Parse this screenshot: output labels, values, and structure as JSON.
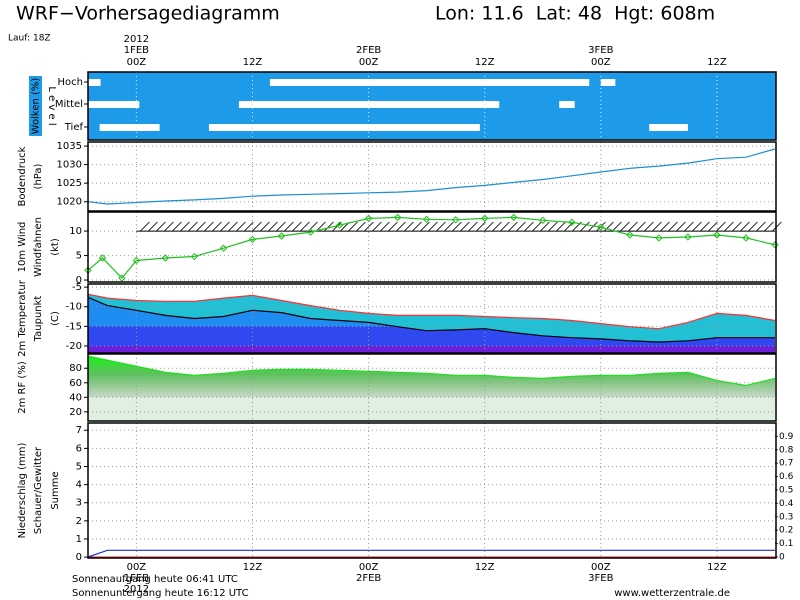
{
  "header": {
    "title": "WRF−Vorhersagediagramm",
    "location": "Lon: 11.6  Lat: 48  Hgt: 608m",
    "run": "Lauf: 18Z"
  },
  "time_axis": {
    "xlim": [
      -5,
      66
    ],
    "xticks": [
      {
        "value": 0,
        "label": "00Z"
      },
      {
        "value": 12,
        "label": "12Z"
      },
      {
        "value": 24,
        "label": "00Z"
      },
      {
        "value": 36,
        "label": "12Z"
      },
      {
        "value": 48,
        "label": "00Z"
      },
      {
        "value": 60,
        "label": "12Z"
      }
    ],
    "dates": [
      {
        "value": 0,
        "label": "1FEB"
      },
      {
        "value": 24,
        "label": "2FEB"
      },
      {
        "value": 48,
        "label": "3FEB"
      }
    ],
    "year": {
      "value": 0,
      "label": "2012"
    }
  },
  "chart_data": [
    {
      "type": "cloud_bands",
      "y_label": "Wolken (%)",
      "level_label": "L e v e l",
      "levels": [
        "Hoch",
        "Mittel",
        "Tief"
      ],
      "bands": [
        {
          "level": 0,
          "start": -5,
          "end": -3.7
        },
        {
          "level": 0,
          "start": 13.8,
          "end": 46.8
        },
        {
          "level": 0,
          "start": 48,
          "end": 49.5
        },
        {
          "level": 1,
          "start": -5,
          "end": 0.3
        },
        {
          "level": 1,
          "start": 10.6,
          "end": 37.5
        },
        {
          "level": 1,
          "start": 43.7,
          "end": 45.3
        },
        {
          "level": 2,
          "start": -3.8,
          "end": 2.4
        },
        {
          "level": 2,
          "start": 7.5,
          "end": 35.5
        },
        {
          "level": 2,
          "start": 53,
          "end": 57
        }
      ]
    },
    {
      "type": "line",
      "unit_label": "(hPa)",
      "ylim": [
        1017.5,
        1036.1
      ],
      "yticks": [
        1020,
        1025,
        1030,
        1035
      ],
      "x": [
        -5,
        -3,
        0,
        3,
        6,
        9,
        12,
        15,
        18,
        21,
        24,
        27,
        30,
        33,
        36,
        39,
        42,
        45,
        48,
        51,
        54,
        57,
        60,
        63,
        66
      ],
      "series": [
        {
          "name": "Bodendruck",
          "color": "#1e8fd0",
          "values": [
            1020.0,
            1019.4,
            1019.8,
            1020.2,
            1020.5,
            1020.9,
            1021.5,
            1021.8,
            1022.0,
            1022.2,
            1022.4,
            1022.6,
            1023.0,
            1023.8,
            1024.4,
            1025.2,
            1026.0,
            1027.0,
            1028.0,
            1029.0,
            1029.6,
            1030.4,
            1031.6,
            1032.0,
            1034.2
          ]
        }
      ]
    },
    {
      "type": "line",
      "markers": true,
      "sub_label": "Windfahnen",
      "unit_label": "(kt)",
      "ylim": [
        -0.4,
        13.9
      ],
      "yticks": [
        0,
        5,
        10
      ],
      "x": [
        -5,
        -3.5,
        -1.5,
        0,
        3,
        6,
        9,
        12,
        15,
        18,
        21,
        24,
        27,
        30,
        33,
        36,
        39,
        42,
        45,
        48,
        51,
        54,
        57,
        60,
        63,
        66
      ],
      "series": [
        {
          "name": "10m Wind",
          "color": "#22c020",
          "values": [
            2,
            4.5,
            0.4,
            4,
            4.5,
            4.8,
            6.5,
            8.3,
            9,
            9.8,
            11.2,
            12.6,
            12.8,
            12.4,
            12.3,
            12.6,
            12.8,
            12.2,
            11.8,
            10.8,
            9.2,
            8.6,
            8.8,
            9.2,
            8.6,
            7.2
          ]
        }
      ]
    },
    {
      "type": "temperature_area",
      "unit_label": "(C)",
      "ylim": [
        -21.8,
        -4.2
      ],
      "yticks": [
        -5,
        -10,
        -15,
        -20
      ],
      "x": [
        -5,
        -3,
        0,
        3,
        6,
        9,
        12,
        15,
        18,
        21,
        24,
        27,
        30,
        33,
        36,
        39,
        42,
        45,
        48,
        51,
        54,
        57,
        60,
        63,
        66
      ],
      "series": [
        {
          "name": "2m Temperatur",
          "color": "#ff3030",
          "values": [
            -6.8,
            -7.8,
            -8.4,
            -8.6,
            -8.6,
            -7.8,
            -7.1,
            -8.4,
            -9.7,
            -10.9,
            -11.7,
            -12.2,
            -12.2,
            -12.2,
            -12.5,
            -12.8,
            -13.0,
            -13.5,
            -14.3,
            -15.1,
            -15.6,
            -14.0,
            -11.7,
            -12.2,
            -13.5
          ]
        },
        {
          "name": "Taupunkt",
          "color": "#000000",
          "values": [
            -7.6,
            -9.7,
            -10.9,
            -12.2,
            -13.0,
            -12.5,
            -10.9,
            -11.5,
            -13.0,
            -13.5,
            -14.0,
            -15.1,
            -16.1,
            -15.9,
            -15.6,
            -16.6,
            -17.4,
            -17.9,
            -18.2,
            -18.7,
            -19.0,
            -18.7,
            -17.9,
            -17.9,
            -17.9
          ]
        }
      ]
    },
    {
      "type": "area",
      "ylim": [
        7.4,
        99.6
      ],
      "yticks": [
        20,
        40,
        60,
        80
      ],
      "x": [
        -5,
        -3,
        0,
        3,
        6,
        9,
        12,
        15,
        18,
        21,
        24,
        27,
        30,
        33,
        36,
        39,
        42,
        45,
        48,
        51,
        54,
        57,
        60,
        63,
        66
      ],
      "series": [
        {
          "name": "2m RF (%)",
          "color": "#20e020",
          "values": [
            96.7,
            91.1,
            82.8,
            74.4,
            70.2,
            73.0,
            77.2,
            78.6,
            78.6,
            77.2,
            75.8,
            74.4,
            73.0,
            70.2,
            70.2,
            67.4,
            66.0,
            68.8,
            70.2,
            70.2,
            73.0,
            74.4,
            63.2,
            56.3,
            66.0
          ]
        }
      ]
    },
    {
      "type": "line",
      "ylim": [
        -0.05,
        7.4
      ],
      "yticks": [
        0,
        1,
        2,
        3,
        4,
        5,
        6,
        7
      ],
      "y2lim": [
        -0.0075,
        1.0
      ],
      "y2ticks": [
        0,
        0.1,
        0.2,
        0.3,
        0.4,
        0.5,
        0.6,
        0.7,
        0.8,
        0.9
      ],
      "series": [
        {
          "name": "Niederschlag (mm)",
          "color": "#20c020",
          "x": [
            -5,
            66
          ],
          "values": [
            0,
            0
          ]
        },
        {
          "name": "Schauer/Gewitter",
          "color": "#e02020",
          "x": [
            -5,
            66
          ],
          "values": [
            0,
            0
          ]
        },
        {
          "name": "Summe",
          "color": "#2030d0",
          "axis": "y2",
          "x": [
            -5,
            -3,
            66
          ],
          "values": [
            0,
            0.05,
            0.05
          ]
        }
      ]
    }
  ],
  "footer": {
    "sunrise": "Sonnenaufgang heute 06:41 UTC",
    "sunset": "Sonnenuntergang heute 16:12 UTC",
    "source": "www.wetterzentrale.de"
  }
}
